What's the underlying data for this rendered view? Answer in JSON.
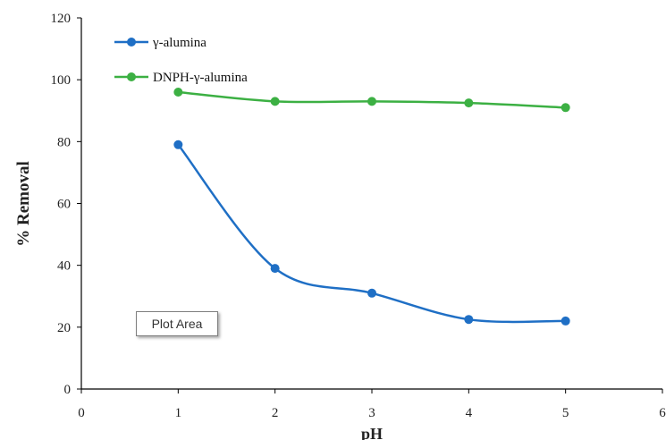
{
  "chart_data": {
    "type": "line",
    "xlabel": "pH",
    "ylabel": "% Removal",
    "xlim": [
      0,
      6
    ],
    "ylim": [
      0,
      120
    ],
    "xticks": [
      "0",
      "1",
      "2",
      "3",
      "4",
      "5",
      "6"
    ],
    "yticks": [
      "0",
      "20",
      "40",
      "60",
      "80",
      "100",
      "120"
    ],
    "grid": false,
    "legend_position": "top-left",
    "series": [
      {
        "name": "γ-alumina",
        "color": "#1f6fc5",
        "smooth": true,
        "x": [
          1,
          2,
          3,
          4,
          5
        ],
        "y": [
          79,
          39,
          31,
          22.5,
          22
        ]
      },
      {
        "name": "DNPH-γ-alumina",
        "color": "#3cb043",
        "smooth": true,
        "x": [
          1,
          2,
          3,
          4,
          5
        ],
        "y": [
          96,
          93,
          93,
          92.5,
          91
        ]
      }
    ]
  },
  "tooltip": {
    "text": "Plot Area"
  }
}
